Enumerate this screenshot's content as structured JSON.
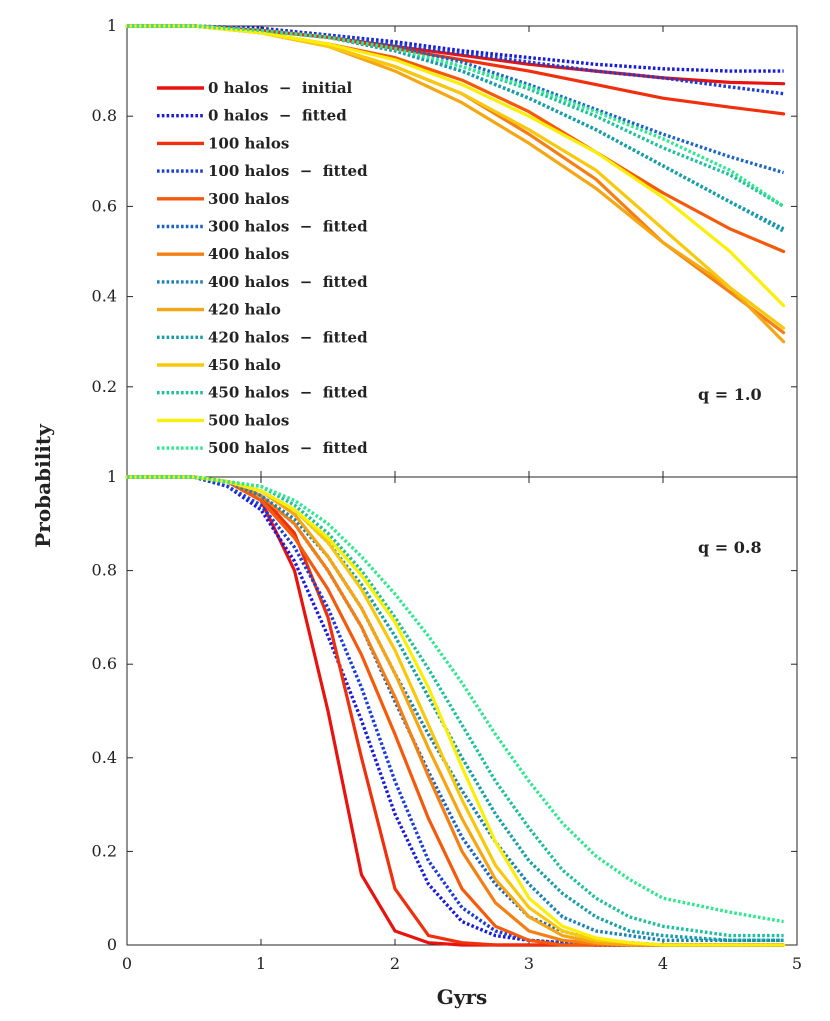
{
  "chart_data": {
    "type": "line",
    "xlabel": "Gyrs",
    "ylabel": "Probability",
    "xlim": [
      0,
      5
    ],
    "x_ticks": [
      "0",
      "1",
      "2",
      "3",
      "4",
      "5"
    ],
    "legend_placement": "top-left of upper panel",
    "series_styles": [
      {
        "name": "0 halos  −  initial",
        "color": "#e8130f",
        "style": "solid"
      },
      {
        "name": "0 halos  −  fitted",
        "color": "#1a1adc",
        "style": "dotted"
      },
      {
        "name": "100 halos",
        "color": "#f0300c",
        "style": "solid"
      },
      {
        "name": "100 halos  −  fitted",
        "color": "#1a3cd8",
        "style": "dotted"
      },
      {
        "name": "300 halos",
        "color": "#f55a0c",
        "style": "solid"
      },
      {
        "name": "300 halos  −  fitted",
        "color": "#1a64c8",
        "style": "dotted"
      },
      {
        "name": "400 halos",
        "color": "#f47f12",
        "style": "solid"
      },
      {
        "name": "400 halos  −  fitted",
        "color": "#1a82b8",
        "style": "dotted"
      },
      {
        "name": "420 halo",
        "color": "#f5a612",
        "style": "solid"
      },
      {
        "name": "420 halos  −  fitted",
        "color": "#14a0a8",
        "style": "dotted"
      },
      {
        "name": "450 halo",
        "color": "#f8c80c",
        "style": "solid"
      },
      {
        "name": "450 halos  −  fitted",
        "color": "#1cc09a",
        "style": "dotted"
      },
      {
        "name": "500 halos",
        "color": "#fbef0a",
        "style": "solid"
      },
      {
        "name": "500 halos  −  fitted",
        "color": "#2ee890",
        "style": "dotted"
      }
    ],
    "panels": [
      {
        "annotation": "q = 1.0",
        "ylim": [
          0,
          1
        ],
        "y_ticks": [
          "0.2",
          "0.4",
          "0.6",
          "0.8",
          "1"
        ],
        "x": [
          0,
          0.5,
          1,
          1.5,
          2,
          2.5,
          3,
          3.5,
          4,
          4.5,
          4.9
        ],
        "series": [
          {
            "name": "0 halos  −  initial",
            "values": [
              1,
              1,
              0.99,
              0.975,
              0.955,
              0.935,
              0.915,
              0.9,
              0.885,
              0.875,
              0.872
            ]
          },
          {
            "name": "0 halos  −  fitted",
            "values": [
              1,
              1,
              0.995,
              0.98,
              0.965,
              0.945,
              0.93,
              0.915,
              0.905,
              0.9,
              0.9
            ]
          },
          {
            "name": "100 halos",
            "values": [
              1,
              1,
              0.99,
              0.975,
              0.95,
              0.925,
              0.9,
              0.87,
              0.84,
              0.82,
              0.805
            ]
          },
          {
            "name": "100 halos  −  fitted",
            "values": [
              1,
              1,
              0.99,
              0.98,
              0.96,
              0.94,
              0.92,
              0.9,
              0.885,
              0.865,
              0.85
            ]
          },
          {
            "name": "300 halos",
            "values": [
              1,
              1,
              0.985,
              0.96,
              0.93,
              0.88,
              0.81,
              0.72,
              0.63,
              0.55,
              0.5
            ]
          },
          {
            "name": "300 halos  −  fitted",
            "values": [
              1,
              1,
              0.99,
              0.975,
              0.955,
              0.92,
              0.87,
              0.815,
              0.76,
              0.71,
              0.675
            ]
          },
          {
            "name": "400 halos",
            "values": [
              1,
              1,
              0.985,
              0.955,
              0.91,
              0.85,
              0.76,
              0.66,
              0.52,
              0.41,
              0.32
            ]
          },
          {
            "name": "400 halos  −  fitted",
            "values": [
              1,
              1,
              0.99,
              0.975,
              0.945,
              0.9,
              0.84,
              0.77,
              0.69,
              0.61,
              0.55
            ]
          },
          {
            "name": "420 halo",
            "values": [
              1,
              1,
              0.985,
              0.955,
              0.9,
              0.83,
              0.74,
              0.64,
              0.52,
              0.42,
              0.3
            ]
          },
          {
            "name": "420 halos  −  fitted",
            "values": [
              1,
              1,
              0.99,
              0.975,
              0.945,
              0.9,
              0.84,
              0.77,
              0.69,
              0.61,
              0.545
            ]
          },
          {
            "name": "450 halo",
            "values": [
              1,
              1,
              0.985,
              0.955,
              0.91,
              0.85,
              0.77,
              0.68,
              0.55,
              0.42,
              0.33
            ]
          },
          {
            "name": "450 halos  −  fitted",
            "values": [
              1,
              1,
              0.99,
              0.975,
              0.95,
              0.91,
              0.86,
              0.8,
              0.73,
              0.67,
              0.6
            ]
          },
          {
            "name": "500 halos",
            "values": [
              1,
              1,
              0.985,
              0.96,
              0.925,
              0.87,
              0.8,
              0.72,
              0.62,
              0.5,
              0.38
            ]
          },
          {
            "name": "500 halos  −  fitted",
            "values": [
              1,
              1,
              0.99,
              0.975,
              0.95,
              0.91,
              0.865,
              0.81,
              0.75,
              0.68,
              0.6
            ]
          }
        ]
      },
      {
        "annotation": "q = 0.8",
        "ylim": [
          0,
          1
        ],
        "y_ticks": [
          "0",
          "0.2",
          "0.4",
          "0.6",
          "0.8",
          "1"
        ],
        "x": [
          0,
          0.5,
          0.75,
          1,
          1.25,
          1.5,
          1.75,
          2,
          2.25,
          2.5,
          2.75,
          3,
          3.25,
          3.5,
          3.75,
          4,
          4.5,
          4.9
        ],
        "series": [
          {
            "name": "0 halos  −  initial",
            "values": [
              1,
              1,
              0.99,
              0.95,
              0.8,
              0.5,
              0.15,
              0.03,
              0.005,
              0,
              0,
              0,
              0,
              0,
              0,
              0,
              0,
              0
            ]
          },
          {
            "name": "0 halos  −  fitted",
            "values": [
              1,
              1,
              0.98,
              0.93,
              0.82,
              0.66,
              0.48,
              0.28,
              0.13,
              0.05,
              0.02,
              0.01,
              0.005,
              0,
              0,
              0,
              0,
              0
            ]
          },
          {
            "name": "100 halos",
            "values": [
              1,
              1,
              0.99,
              0.96,
              0.88,
              0.7,
              0.4,
              0.12,
              0.02,
              0.005,
              0,
              0,
              0,
              0,
              0,
              0,
              0,
              0
            ]
          },
          {
            "name": "100 halos  −  fitted",
            "values": [
              1,
              1,
              0.98,
              0.94,
              0.85,
              0.72,
              0.55,
              0.35,
              0.18,
              0.08,
              0.03,
              0.01,
              0.005,
              0,
              0,
              0,
              0,
              0
            ]
          },
          {
            "name": "300 halos",
            "values": [
              1,
              1,
              0.99,
              0.95,
              0.87,
              0.76,
              0.62,
              0.45,
              0.27,
              0.12,
              0.04,
              0.01,
              0,
              0,
              0,
              0,
              0,
              0
            ]
          },
          {
            "name": "300 halos  −  fitted",
            "values": [
              1,
              1,
              0.99,
              0.96,
              0.9,
              0.8,
              0.68,
              0.52,
              0.37,
              0.23,
              0.13,
              0.06,
              0.03,
              0.01,
              0.005,
              0,
              0,
              0
            ]
          },
          {
            "name": "400 halos",
            "values": [
              1,
              1,
              0.99,
              0.96,
              0.9,
              0.8,
              0.68,
              0.53,
              0.36,
              0.2,
              0.09,
              0.03,
              0.01,
              0.003,
              0,
              0,
              0,
              0
            ]
          },
          {
            "name": "400 halos  −  fitted",
            "values": [
              1,
              1,
              0.99,
              0.96,
              0.91,
              0.83,
              0.72,
              0.58,
              0.45,
              0.33,
              0.22,
              0.13,
              0.06,
              0.03,
              0.02,
              0.01,
              0.01,
              0.01
            ]
          },
          {
            "name": "420 halo",
            "values": [
              1,
              1,
              0.99,
              0.97,
              0.92,
              0.83,
              0.72,
              0.58,
              0.42,
              0.27,
              0.14,
              0.06,
              0.02,
              0.005,
              0,
              0,
              0,
              0
            ]
          },
          {
            "name": "420 halos  −  fitted",
            "values": [
              1,
              1,
              0.99,
              0.97,
              0.93,
              0.86,
              0.77,
              0.66,
              0.53,
              0.4,
              0.28,
              0.18,
              0.11,
              0.06,
              0.03,
              0.02,
              0.01,
              0.01
            ]
          },
          {
            "name": "450 halo",
            "values": [
              1,
              1,
              0.99,
              0.97,
              0.93,
              0.86,
              0.76,
              0.63,
              0.47,
              0.31,
              0.17,
              0.08,
              0.03,
              0.01,
              0.005,
              0,
              0,
              0
            ]
          },
          {
            "name": "450 halos  −  fitted",
            "values": [
              1,
              1,
              0.99,
              0.98,
              0.94,
              0.88,
              0.8,
              0.7,
              0.59,
              0.47,
              0.35,
              0.25,
              0.16,
              0.1,
              0.06,
              0.04,
              0.02,
              0.02
            ]
          },
          {
            "name": "500 halos",
            "values": [
              1,
              1,
              0.99,
              0.97,
              0.93,
              0.87,
              0.79,
              0.69,
              0.55,
              0.38,
              0.22,
              0.1,
              0.04,
              0.015,
              0.005,
              0,
              0,
              0
            ]
          },
          {
            "name": "500 halos  −  fitted",
            "values": [
              1,
              1,
              0.99,
              0.98,
              0.95,
              0.9,
              0.83,
              0.75,
              0.66,
              0.56,
              0.45,
              0.35,
              0.26,
              0.19,
              0.14,
              0.1,
              0.07,
              0.05
            ]
          }
        ]
      }
    ]
  }
}
